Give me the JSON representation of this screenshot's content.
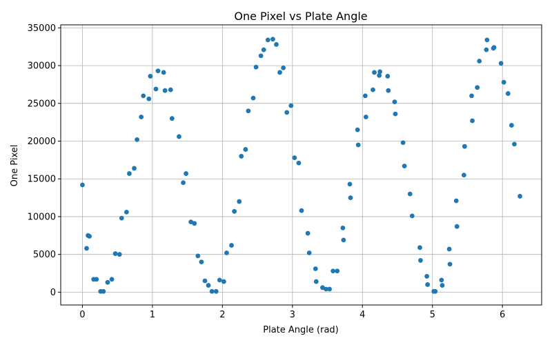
{
  "chart_data": {
    "type": "scatter",
    "title": "One Pixel vs Plate Angle",
    "xlabel": "Plate Angle (rad)",
    "ylabel": "One Pixel",
    "xlim": [
      -0.31,
      6.56
    ],
    "ylim": [
      -1700,
      35400
    ],
    "xticks": [
      0,
      1,
      2,
      3,
      4,
      5,
      6
    ],
    "yticks": [
      0,
      5000,
      10000,
      15000,
      20000,
      25000,
      30000,
      35000
    ],
    "grid": true,
    "marker_color": "#1f77b4",
    "x": [
      0.0,
      0.06,
      0.08,
      0.1,
      0.16,
      0.2,
      0.26,
      0.3,
      0.36,
      0.42,
      0.47,
      0.53,
      0.56,
      0.63,
      0.67,
      0.74,
      0.78,
      0.84,
      0.87,
      0.95,
      0.97,
      1.05,
      1.08,
      1.16,
      1.18,
      1.26,
      1.28,
      1.38,
      1.44,
      1.48,
      1.55,
      1.6,
      1.65,
      1.7,
      1.75,
      1.8,
      1.85,
      1.91,
      1.96,
      2.02,
      2.06,
      2.13,
      2.17,
      2.24,
      2.27,
      2.33,
      2.37,
      2.44,
      2.48,
      2.55,
      2.59,
      2.65,
      2.72,
      2.77,
      2.82,
      2.87,
      2.92,
      2.98,
      3.03,
      3.09,
      3.13,
      3.22,
      3.24,
      3.33,
      3.34,
      3.43,
      3.48,
      3.53,
      3.58,
      3.64,
      3.72,
      3.73,
      3.82,
      3.83,
      3.93,
      3.94,
      4.04,
      4.05,
      4.15,
      4.17,
      4.24,
      4.25,
      4.36,
      4.37,
      4.46,
      4.47,
      4.58,
      4.6,
      4.68,
      4.71,
      4.82,
      4.83,
      4.92,
      4.93,
      5.02,
      5.04,
      5.13,
      5.14,
      5.24,
      5.25,
      5.34,
      5.35,
      5.45,
      5.46,
      5.56,
      5.57,
      5.64,
      5.67,
      5.77,
      5.78,
      5.87,
      5.88,
      5.98,
      6.02,
      6.08,
      6.13,
      6.17,
      6.25
    ],
    "y": [
      14200,
      5800,
      7500,
      7400,
      1700,
      1700,
      100,
      100,
      1300,
      1700,
      5100,
      5000,
      9800,
      10600,
      15700,
      16400,
      20200,
      23200,
      26000,
      25600,
      28600,
      26900,
      29300,
      29100,
      26700,
      26800,
      23000,
      20600,
      14500,
      15700,
      9300,
      9100,
      4800,
      4000,
      1500,
      900,
      100,
      100,
      1600,
      1400,
      5200,
      6200,
      10700,
      12000,
      18000,
      18900,
      24000,
      25700,
      29800,
      31300,
      32100,
      33400,
      33500,
      32800,
      29100,
      29700,
      23800,
      24700,
      17800,
      17100,
      10800,
      7800,
      5200,
      3100,
      1400,
      600,
      400,
      400,
      2800,
      2800,
      8500,
      6900,
      14300,
      12500,
      21500,
      19500,
      26000,
      23200,
      26800,
      29100,
      28700,
      29200,
      28600,
      26700,
      25200,
      23600,
      19800,
      16700,
      13000,
      10100,
      5900,
      4200,
      2100,
      1000,
      100,
      100,
      1600,
      900,
      5700,
      3700,
      12100,
      8700,
      15500,
      19300,
      26000,
      22700,
      27100,
      30600,
      32100,
      33400,
      32300,
      32400,
      30300,
      27800,
      26300,
      22100,
      19600,
      12700
    ]
  }
}
